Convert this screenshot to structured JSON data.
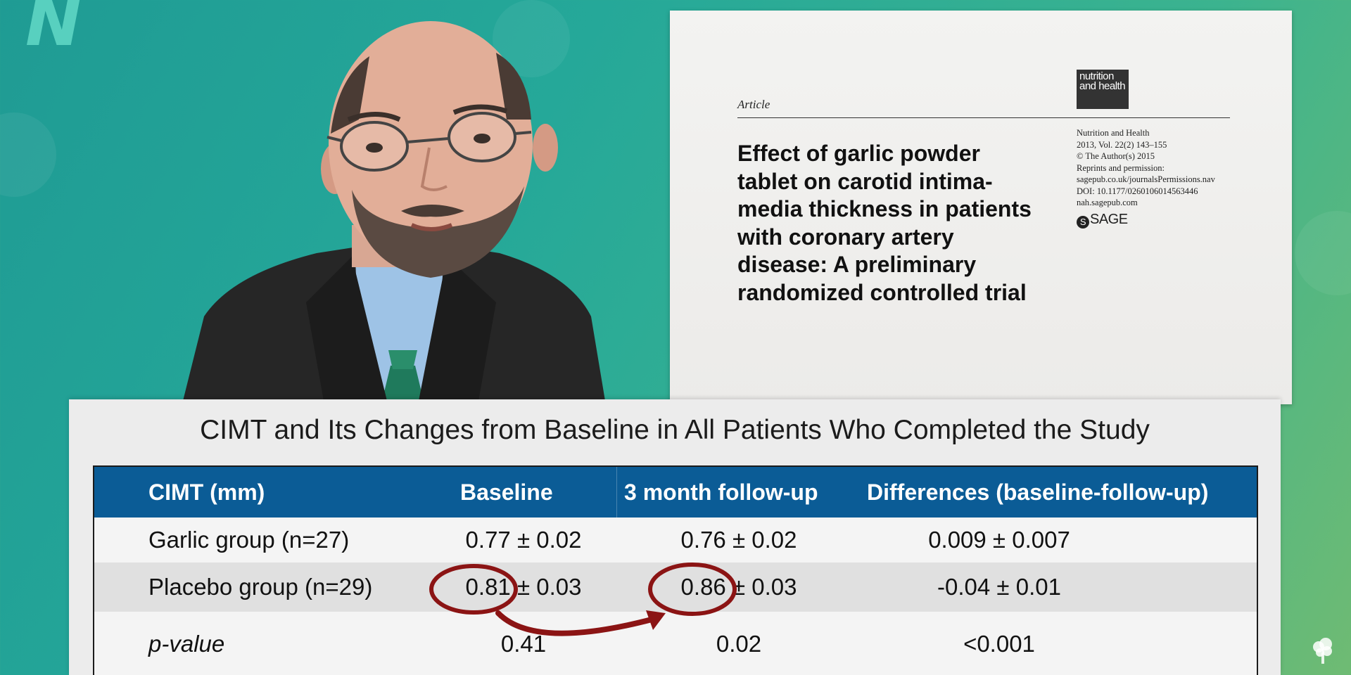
{
  "paper": {
    "article_label": "Article",
    "journal_logo": "nutrition and health",
    "title": "Effect of garlic powder tablet on carotid intima-media thickness in patients with coronary artery disease: A preliminary randomized controlled trial",
    "meta": [
      "Nutrition and Health",
      "2013, Vol. 22(2) 143–155",
      "© The Author(s) 2015",
      "Reprints and permission:",
      "sagepub.co.uk/journalsPermissions.nav",
      "DOI: 10.1177/0260106014563446",
      "nah.sagepub.com"
    ],
    "publisher": "SAGE"
  },
  "table": {
    "title": "CIMT and Its Changes from Baseline in All Patients Who Completed the Study",
    "headers": [
      "CIMT (mm)",
      "Baseline",
      "3 month follow-up",
      "Differences (baseline-follow-up)"
    ],
    "rows": [
      [
        "Garlic group (n=27)",
        "0.77 ± 0.02",
        "0.76 ± 0.02",
        "0.009 ± 0.007"
      ],
      [
        "Placebo group (n=29)",
        "0.81 ± 0.03",
        "0.86 ± 0.03",
        "-0.04 ± 0.01"
      ],
      [
        "p-value",
        "0.41",
        "0.02",
        "<0.001"
      ]
    ]
  },
  "colors": {
    "header_blue": "#0b5c96",
    "annotation_red": "#8b1414",
    "background_teal": "#25a899"
  },
  "icons": {
    "brand": "nutritionfacts-logo-icon",
    "corner": "tree-icon"
  }
}
